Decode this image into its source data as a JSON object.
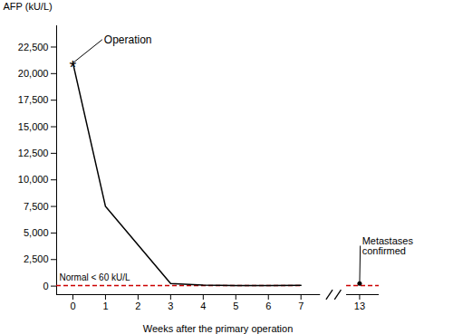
{
  "chart_data": {
    "type": "line",
    "xlabel": "Weeks after the primary operation",
    "ylabel": "AFP (kU/L)",
    "x": [
      0,
      1,
      3,
      4,
      5,
      6,
      7,
      13
    ],
    "values": [
      21000,
      7500,
      250,
      100,
      50,
      50,
      80,
      250
    ],
    "color": "#000000",
    "xlim": [
      -0.5,
      13.6
    ],
    "xticks": [
      0,
      1,
      2,
      3,
      4,
      5,
      6,
      7,
      13
    ],
    "ylim": [
      -800,
      24500
    ],
    "yticks": [
      0,
      {
        "value": 2500,
        "label": "2,500"
      },
      {
        "value": 5000,
        "label": "5,000"
      },
      {
        "value": 7500,
        "label": "7,500"
      },
      {
        "value": 10000,
        "label": "10,000"
      },
      {
        "value": 12500,
        "label": "12,500"
      },
      {
        "value": 15000,
        "label": "15,000"
      },
      {
        "value": 17500,
        "label": "17,500"
      },
      {
        "value": 20000,
        "label": "20,000"
      },
      {
        "value": 22500,
        "label": "22,500"
      }
    ],
    "reference_lines": [
      {
        "y": 60,
        "color": "#cc0000",
        "line_style": "dashed",
        "label": "Normal < 60 kU/L"
      }
    ],
    "annotations": [
      {
        "text": "*",
        "x": 0,
        "y": 21000
      },
      {
        "text": "Operation",
        "x": 0,
        "y": 21000
      },
      {
        "text": "Metastases\nconfirmed",
        "x": 13,
        "y": 200
      }
    ]
  }
}
